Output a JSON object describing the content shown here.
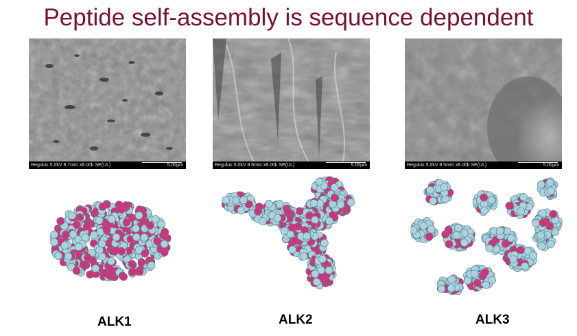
{
  "slide": {
    "title": "Peptide self-assembly is sequence dependent",
    "title_color": "#7a1030"
  },
  "panels": [
    {
      "sem_caption": "Regulus 5.0kV 8.7mm x8.00k SE(UL)",
      "scale": "5.00μm",
      "label": "ALK1"
    },
    {
      "sem_caption": "Regulus 5.0kV 8.6mm x8.00k SE(UL)",
      "scale": "5.00μm",
      "label": "ALK2"
    },
    {
      "sem_caption": "Regulus 5.0kV 8.5mm x8.00k SE(UL)",
      "scale": "5.00μm",
      "label": "ALK3"
    }
  ],
  "colors": {
    "residue_light": "#a9d4df",
    "residue_magenta": "#d0337a"
  }
}
